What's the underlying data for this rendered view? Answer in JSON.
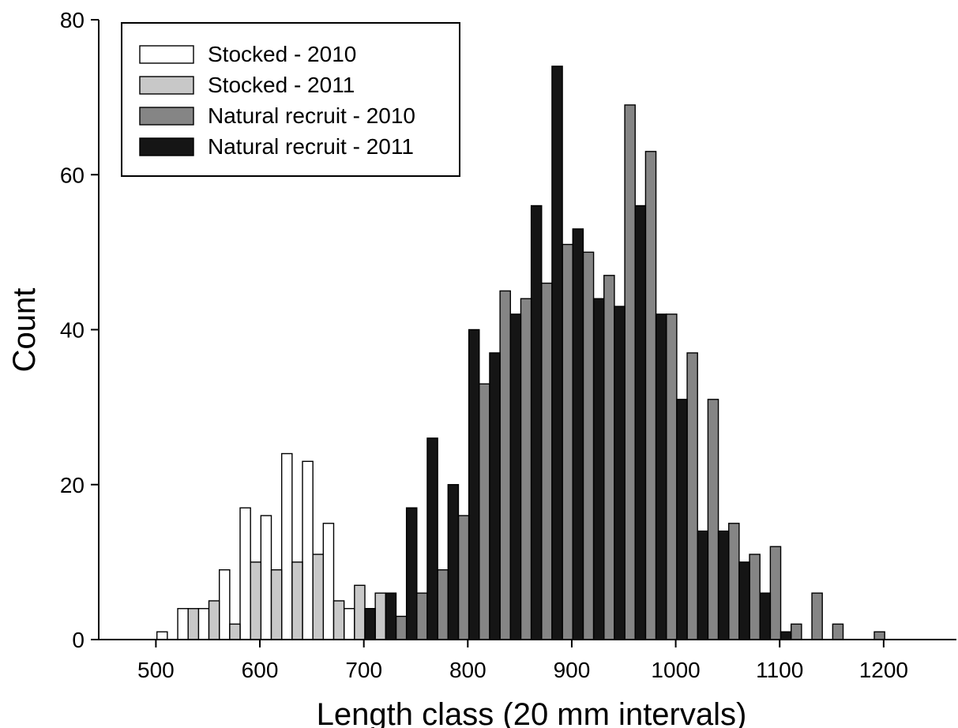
{
  "chart_data": {
    "type": "bar",
    "title": "",
    "xlabel": "Length class (20 mm intervals)",
    "ylabel": "Count",
    "xlim": [
      445,
      1270
    ],
    "ylim": [
      0,
      80
    ],
    "x_ticks": [
      500,
      600,
      700,
      800,
      900,
      1000,
      1100,
      1200
    ],
    "y_ticks": [
      0,
      20,
      40,
      60,
      80
    ],
    "grid": false,
    "legend_position": "top-left",
    "bin_width": 20,
    "series": [
      {
        "name": "Stocked - 2010",
        "color": "#ffffff",
        "points": [
          [
            520,
            1
          ],
          [
            540,
            4
          ],
          [
            560,
            4
          ],
          [
            580,
            9
          ],
          [
            600,
            17
          ],
          [
            620,
            16
          ],
          [
            640,
            24
          ],
          [
            660,
            23
          ],
          [
            680,
            15
          ],
          [
            700,
            4
          ],
          [
            720,
            4
          ]
        ]
      },
      {
        "name": "Stocked - 2011",
        "color": "#c8c8c8",
        "points": [
          [
            540,
            4
          ],
          [
            560,
            5
          ],
          [
            580,
            2
          ],
          [
            600,
            10
          ],
          [
            620,
            9
          ],
          [
            640,
            10
          ],
          [
            660,
            11
          ],
          [
            680,
            5
          ],
          [
            700,
            7
          ],
          [
            720,
            6
          ]
        ]
      },
      {
        "name": "Natural recruit - 2010",
        "color": "#858585",
        "points": [
          [
            740,
            3
          ],
          [
            760,
            6
          ],
          [
            780,
            9
          ],
          [
            800,
            16
          ],
          [
            820,
            33
          ],
          [
            840,
            45
          ],
          [
            860,
            44
          ],
          [
            880,
            46
          ],
          [
            900,
            51
          ],
          [
            920,
            50
          ],
          [
            940,
            47
          ],
          [
            960,
            69
          ],
          [
            980,
            63
          ],
          [
            1000,
            42
          ],
          [
            1020,
            37
          ],
          [
            1040,
            31
          ],
          [
            1060,
            15
          ],
          [
            1080,
            11
          ],
          [
            1100,
            12
          ],
          [
            1120,
            2
          ],
          [
            1140,
            6
          ],
          [
            1160,
            2
          ],
          [
            1200,
            1
          ]
        ]
      },
      {
        "name": "Natural recruit - 2011",
        "color": "#151515",
        "points": [
          [
            720,
            4
          ],
          [
            740,
            6
          ],
          [
            760,
            17
          ],
          [
            780,
            26
          ],
          [
            800,
            20
          ],
          [
            820,
            40
          ],
          [
            840,
            37
          ],
          [
            860,
            42
          ],
          [
            880,
            56
          ],
          [
            900,
            74
          ],
          [
            920,
            53
          ],
          [
            940,
            44
          ],
          [
            960,
            43
          ],
          [
            980,
            56
          ],
          [
            1000,
            42
          ],
          [
            1020,
            31
          ],
          [
            1040,
            14
          ],
          [
            1060,
            14
          ],
          [
            1080,
            10
          ],
          [
            1100,
            6
          ],
          [
            1120,
            1
          ]
        ]
      }
    ]
  }
}
